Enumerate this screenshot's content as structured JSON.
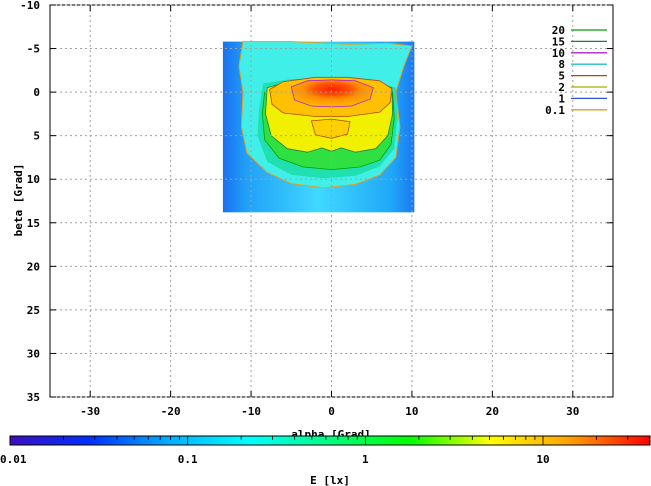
{
  "chart_data": {
    "type": "heatmap",
    "title": "",
    "xlabel": "alpha [Grad]",
    "ylabel": "beta [Grad]",
    "xlim": [
      -35,
      35
    ],
    "ylim": [
      -10,
      35
    ],
    "y_inverted": true,
    "x_ticks": [
      -30,
      -20,
      -10,
      0,
      10,
      20,
      30
    ],
    "y_ticks": [
      -10,
      -5,
      0,
      5,
      10,
      15,
      20,
      25,
      30,
      35
    ],
    "grid": true,
    "data_extent": {
      "alpha": [
        -13.5,
        10.3
      ],
      "beta": [
        -5.8,
        13.8
      ]
    },
    "contour_legend_placement": "top-right",
    "contours": [
      {
        "level": "20",
        "color": "#00a000"
      },
      {
        "level": "15",
        "color": "#1e8040"
      },
      {
        "level": "10",
        "color": "#b020d0"
      },
      {
        "level": "8",
        "color": "#20c0c0"
      },
      {
        "level": "5",
        "color": "#b04a10"
      },
      {
        "level": "2",
        "color": "#b0a800"
      },
      {
        "level": "1",
        "color": "#3050e0"
      },
      {
        "level": "0.1",
        "color": "#e0a020"
      }
    ],
    "colorbar": {
      "label": "E [lx]",
      "scale": "log",
      "range": [
        0.01,
        40
      ],
      "ticks": [
        {
          "value": 0.01,
          "label": "0.01"
        },
        {
          "value": 0.1,
          "label": "0.1"
        },
        {
          "value": 1,
          "label": "1"
        },
        {
          "value": 10,
          "label": "10"
        }
      ],
      "colors": [
        "#3a10c0",
        "#0030ff",
        "#00b0ff",
        "#00ffff",
        "#00ff80",
        "#00ff00",
        "#ffff00",
        "#ffa000",
        "#ff0000"
      ]
    }
  }
}
